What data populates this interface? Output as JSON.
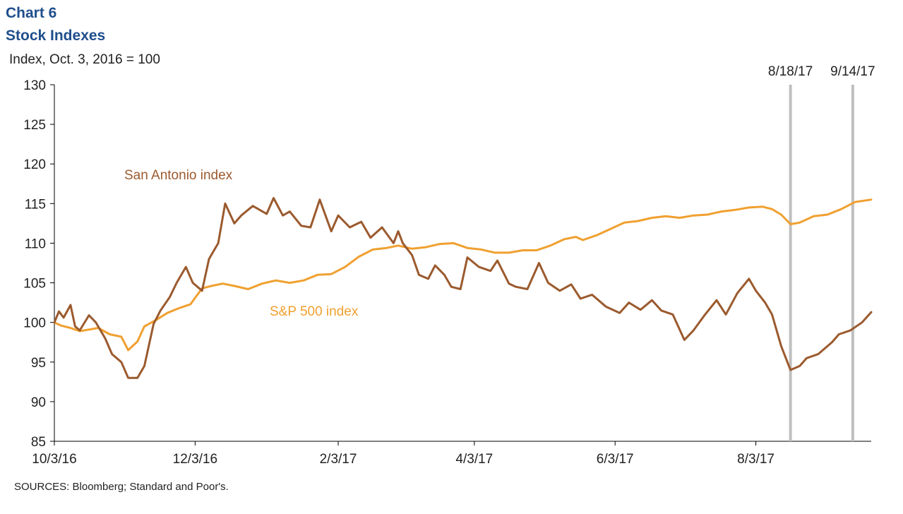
{
  "header": {
    "line1": "Chart 6",
    "line2": "Stock Indexes",
    "unit": "Index, Oct. 3, 2016 = 100"
  },
  "footer": {
    "sources": "SOURCES: Bloomberg; Standard and Poor's."
  },
  "colors": {
    "title": "#1f4e8c",
    "san_antonio": "#9b5a2e",
    "sp500": "#f0a030",
    "markers": "#bfbfbf",
    "axis": "#000000"
  },
  "chart_data": {
    "type": "line",
    "title": "Stock Indexes",
    "ylabel": "Index, Oct. 3, 2016 = 100",
    "xlabel": "",
    "ylim": [
      85,
      130
    ],
    "xlim": [
      "2016-10-03",
      "2017-09-22"
    ],
    "y_ticks": [
      85,
      90,
      95,
      100,
      105,
      110,
      115,
      120,
      125,
      130
    ],
    "x_ticks": [
      {
        "label": "10/3/16",
        "date": "2016-10-03"
      },
      {
        "label": "12/3/16",
        "date": "2016-12-03"
      },
      {
        "label": "2/3/17",
        "date": "2017-02-03"
      },
      {
        "label": "4/3/17",
        "date": "2017-04-03"
      },
      {
        "label": "6/3/17",
        "date": "2017-06-03"
      },
      {
        "label": "8/3/17",
        "date": "2017-08-03"
      }
    ],
    "grid": false,
    "markers": [
      {
        "label": "8/18/17",
        "date": "2017-08-18"
      },
      {
        "label": "9/14/17",
        "date": "2017-09-14"
      }
    ],
    "series": [
      {
        "name": "San Antonio index",
        "x": [
          "2016-10-03",
          "2016-10-05",
          "2016-10-07",
          "2016-10-10",
          "2016-10-12",
          "2016-10-14",
          "2016-10-18",
          "2016-10-21",
          "2016-10-25",
          "2016-10-28",
          "2016-11-01",
          "2016-11-04",
          "2016-11-08",
          "2016-11-11",
          "2016-11-15",
          "2016-11-18",
          "2016-11-22",
          "2016-11-25",
          "2016-11-29",
          "2016-12-02",
          "2016-12-06",
          "2016-12-09",
          "2016-12-13",
          "2016-12-16",
          "2016-12-20",
          "2016-12-23",
          "2016-12-28",
          "2017-01-03",
          "2017-01-06",
          "2017-01-10",
          "2017-01-13",
          "2017-01-18",
          "2017-01-22",
          "2017-01-26",
          "2017-01-31",
          "2017-02-03",
          "2017-02-08",
          "2017-02-13",
          "2017-02-17",
          "2017-02-22",
          "2017-02-27",
          "2017-03-01",
          "2017-03-03",
          "2017-03-07",
          "2017-03-10",
          "2017-03-14",
          "2017-03-17",
          "2017-03-21",
          "2017-03-24",
          "2017-03-28",
          "2017-03-31",
          "2017-04-05",
          "2017-04-10",
          "2017-04-13",
          "2017-04-18",
          "2017-04-21",
          "2017-04-26",
          "2017-05-01",
          "2017-05-05",
          "2017-05-10",
          "2017-05-15",
          "2017-05-19",
          "2017-05-24",
          "2017-05-30",
          "2017-06-05",
          "2017-06-09",
          "2017-06-14",
          "2017-06-19",
          "2017-06-23",
          "2017-06-28",
          "2017-07-03",
          "2017-07-07",
          "2017-07-12",
          "2017-07-17",
          "2017-07-21",
          "2017-07-26",
          "2017-07-31",
          "2017-08-03",
          "2017-08-07",
          "2017-08-10",
          "2017-08-14",
          "2017-08-18",
          "2017-08-22",
          "2017-08-25",
          "2017-08-30",
          "2017-09-05",
          "2017-09-08",
          "2017-09-13",
          "2017-09-18",
          "2017-09-22"
        ],
        "values": [
          100.0,
          101.4,
          100.6,
          102.2,
          99.5,
          99.0,
          100.9,
          100.0,
          98.0,
          96.0,
          95.0,
          93.0,
          93.0,
          94.5,
          99.8,
          101.5,
          103.2,
          105.0,
          107.0,
          105.0,
          104.0,
          108.0,
          110.0,
          115.0,
          112.5,
          113.5,
          114.7,
          113.7,
          115.7,
          113.5,
          114.0,
          112.2,
          112.0,
          115.5,
          111.5,
          113.5,
          112.0,
          112.7,
          110.7,
          112.0,
          110.0,
          111.5,
          110.0,
          108.5,
          106.0,
          105.5,
          107.2,
          106.0,
          104.5,
          104.2,
          108.2,
          107.0,
          106.5,
          107.8,
          104.9,
          104.5,
          104.2,
          107.5,
          105.0,
          104.0,
          104.8,
          103.0,
          103.5,
          102.0,
          101.2,
          102.5,
          101.6,
          102.8,
          101.5,
          101.0,
          97.8,
          99.0,
          101.0,
          102.8,
          101.0,
          103.7,
          105.5,
          104.0,
          102.5,
          101.0,
          97.0,
          94.0,
          94.5,
          95.5,
          96.0,
          97.5,
          98.5,
          99.0,
          100.0,
          101.3
        ]
      },
      {
        "name": "S&P 500 index",
        "x": [
          "2016-10-03",
          "2016-10-06",
          "2016-10-10",
          "2016-10-14",
          "2016-10-18",
          "2016-10-22",
          "2016-10-27",
          "2016-11-01",
          "2016-11-04",
          "2016-11-08",
          "2016-11-11",
          "2016-11-16",
          "2016-11-21",
          "2016-11-26",
          "2016-12-01",
          "2016-12-06",
          "2016-12-10",
          "2016-12-15",
          "2016-12-20",
          "2016-12-26",
          "2017-01-01",
          "2017-01-07",
          "2017-01-13",
          "2017-01-19",
          "2017-01-25",
          "2017-01-31",
          "2017-02-06",
          "2017-02-12",
          "2017-02-18",
          "2017-02-24",
          "2017-03-01",
          "2017-03-07",
          "2017-03-13",
          "2017-03-19",
          "2017-03-25",
          "2017-03-31",
          "2017-04-06",
          "2017-04-12",
          "2017-04-18",
          "2017-04-24",
          "2017-04-30",
          "2017-05-06",
          "2017-05-12",
          "2017-05-17",
          "2017-05-20",
          "2017-05-26",
          "2017-06-01",
          "2017-06-07",
          "2017-06-13",
          "2017-06-19",
          "2017-06-25",
          "2017-07-01",
          "2017-07-07",
          "2017-07-13",
          "2017-07-19",
          "2017-07-25",
          "2017-07-31",
          "2017-08-06",
          "2017-08-10",
          "2017-08-14",
          "2017-08-18",
          "2017-08-22",
          "2017-08-28",
          "2017-09-03",
          "2017-09-09",
          "2017-09-15",
          "2017-09-22"
        ],
        "values": [
          100.0,
          99.6,
          99.3,
          98.9,
          99.1,
          99.3,
          98.5,
          98.2,
          96.5,
          97.6,
          99.5,
          100.3,
          101.2,
          101.8,
          102.3,
          104.3,
          104.6,
          104.9,
          104.6,
          104.2,
          104.9,
          105.3,
          105.0,
          105.3,
          106.0,
          106.1,
          107.0,
          108.3,
          109.2,
          109.4,
          109.7,
          109.3,
          109.5,
          109.9,
          110.0,
          109.4,
          109.2,
          108.8,
          108.8,
          109.1,
          109.1,
          109.7,
          110.5,
          110.8,
          110.4,
          111.0,
          111.8,
          112.6,
          112.8,
          113.2,
          113.4,
          113.2,
          113.5,
          113.6,
          114.0,
          114.2,
          114.5,
          114.6,
          114.3,
          113.6,
          112.4,
          112.6,
          113.4,
          113.6,
          114.3,
          115.2,
          115.5
        ]
      }
    ]
  }
}
